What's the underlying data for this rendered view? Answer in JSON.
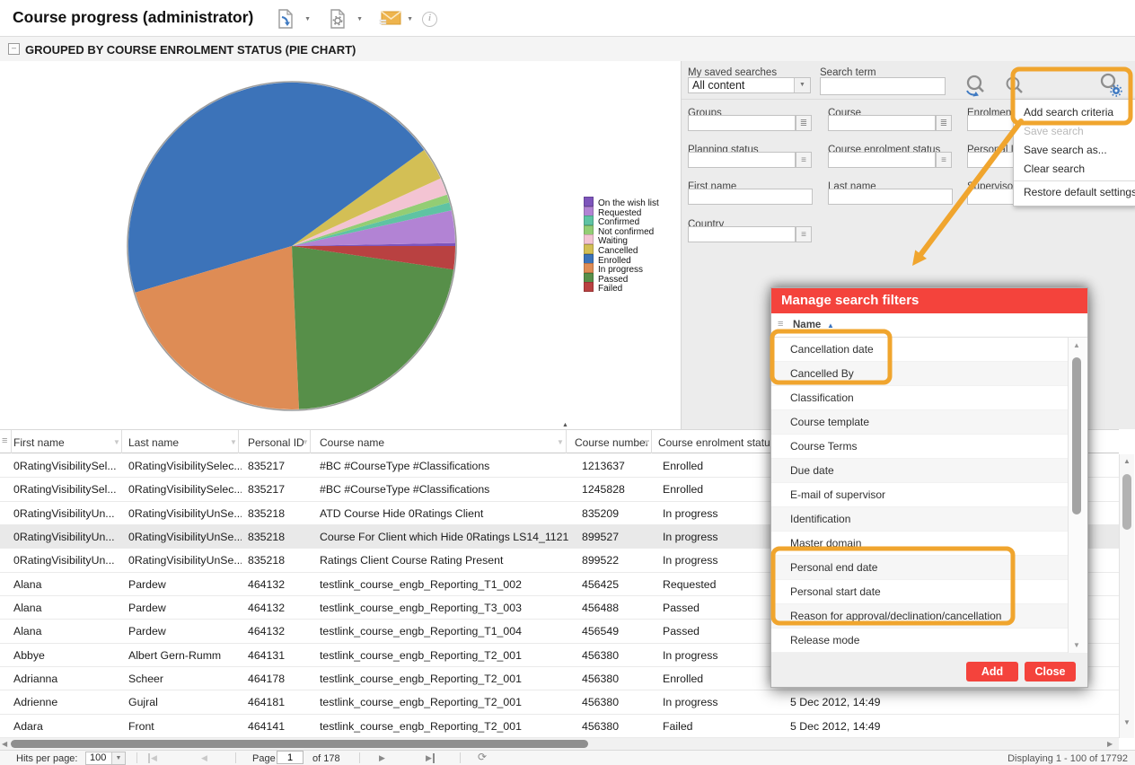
{
  "window": {
    "title": "Course progress (administrator)"
  },
  "section": {
    "title": "GROUPED BY COURSE ENROLMENT STATUS (PIE CHART)"
  },
  "chart_data": {
    "type": "pie",
    "title": "Grouped by course enrolment status (pie chart)",
    "legend_position": "right",
    "start_angle_deg": 0,
    "direction": "counterclockwise",
    "slices": [
      {
        "label": "On the wish list",
        "percent": 0.3,
        "color": "#7d54bb"
      },
      {
        "label": "Requested",
        "percent": 3.2,
        "color": "#b283d4"
      },
      {
        "label": "Confirmed",
        "percent": 0.8,
        "color": "#5fc3a3"
      },
      {
        "label": "Not confirmed",
        "percent": 0.8,
        "color": "#93cd74"
      },
      {
        "label": "Waiting",
        "percent": 1.7,
        "color": "#f3c4d3"
      },
      {
        "label": "Cancelled",
        "percent": 3.2,
        "color": "#d3bf55"
      },
      {
        "label": "Enrolled",
        "percent": 44.6,
        "color": "#3c73b9"
      },
      {
        "label": "In progress",
        "percent": 21.1,
        "color": "#de8c55"
      },
      {
        "label": "Passed",
        "percent": 22.0,
        "color": "#578f49"
      },
      {
        "label": "Failed",
        "percent": 2.3,
        "color": "#b94141"
      }
    ]
  },
  "search_panel": {
    "saved_label": "My saved searches",
    "saved_value": "All content",
    "term_label": "Search term",
    "term_value": "",
    "fields": [
      {
        "label": "Groups",
        "value": "",
        "button": "list"
      },
      {
        "label": "Course",
        "value": "",
        "button": "list"
      },
      {
        "label": "Enrolment date",
        "value": "",
        "button": "list"
      },
      {
        "label": "Planning status",
        "value": "",
        "button": "menu"
      },
      {
        "label": "Course enrolment status",
        "value": "",
        "button": "menu"
      },
      {
        "label": "Personal ID",
        "value": "",
        "button": null
      },
      {
        "label": "First name",
        "value": "",
        "button": null
      },
      {
        "label": "Last name",
        "value": "",
        "button": null
      },
      {
        "label": "Supervisor",
        "value": "",
        "button": "menu"
      },
      {
        "label": "Country",
        "value": "",
        "button": "menu"
      }
    ]
  },
  "menu": {
    "items": [
      {
        "label": "Add search criteria",
        "disabled": false
      },
      {
        "label": "Save search",
        "disabled": true
      },
      {
        "label": "Save search as...",
        "disabled": false
      },
      {
        "label": "Clear search",
        "disabled": false
      },
      {
        "label": "Restore default settings",
        "disabled": false
      }
    ]
  },
  "modal": {
    "title": "Manage search filters",
    "name_column": "Name",
    "items": [
      "Cancellation date",
      "Cancelled By",
      "Classification",
      "Course template",
      "Course Terms",
      "Due date",
      "E-mail of supervisor",
      "Identification",
      "Master domain",
      "Personal end date",
      "Personal start date",
      "Reason for approval/declination/cancellation",
      "Release mode"
    ],
    "add_label": "Add",
    "close_label": "Close"
  },
  "table": {
    "columns": [
      "First name",
      "Last name",
      "Personal ID",
      "Course name",
      "Course number",
      "Course enrolment status"
    ],
    "rows": [
      {
        "first": "0RatingVisibilitySel...",
        "last": "0RatingVisibilitySelec...",
        "id": "835217",
        "course": "#BC #CourseType #Classifications",
        "number": "1213637",
        "status": "Enrolled",
        "date": "",
        "selected": false
      },
      {
        "first": "0RatingVisibilitySel...",
        "last": "0RatingVisibilitySelec...",
        "id": "835217",
        "course": "#BC #CourseType #Classifications",
        "number": "1245828",
        "status": "Enrolled",
        "date": "",
        "selected": false
      },
      {
        "first": "0RatingVisibilityUn...",
        "last": "0RatingVisibilityUnSe...",
        "id": "835218",
        "course": "ATD Course Hide 0Ratings Client",
        "number": "835209",
        "status": "In progress",
        "date": "",
        "selected": false
      },
      {
        "first": "0RatingVisibilityUn...",
        "last": "0RatingVisibilityUnSe...",
        "id": "835218",
        "course": "Course For Client which Hide 0Ratings LS14_1121",
        "number": "899527",
        "status": "In progress",
        "date": "",
        "selected": true
      },
      {
        "first": "0RatingVisibilityUn...",
        "last": "0RatingVisibilityUnSe...",
        "id": "835218",
        "course": "Ratings Client Course Rating Present",
        "number": "899522",
        "status": "In progress",
        "date": "",
        "selected": false
      },
      {
        "first": "Alana",
        "last": "Pardew",
        "id": "464132",
        "course": "testlink_course_engb_Reporting_T1_002",
        "number": "456425",
        "status": "Requested",
        "date": "",
        "selected": false
      },
      {
        "first": "Alana",
        "last": "Pardew",
        "id": "464132",
        "course": "testlink_course_engb_Reporting_T3_003",
        "number": "456488",
        "status": "Passed",
        "date": "",
        "selected": false
      },
      {
        "first": "Alana",
        "last": "Pardew",
        "id": "464132",
        "course": "testlink_course_engb_Reporting_T1_004",
        "number": "456549",
        "status": "Passed",
        "date": "",
        "selected": false
      },
      {
        "first": "Abbye",
        "last": "Albert Gern-Rumm",
        "id": "464131",
        "course": "testlink_course_engb_Reporting_T2_001",
        "number": "456380",
        "status": "In progress",
        "date": "",
        "selected": false
      },
      {
        "first": "Adrianna",
        "last": "Scheer",
        "id": "464178",
        "course": "testlink_course_engb_Reporting_T2_001",
        "number": "456380",
        "status": "Enrolled",
        "date": "",
        "selected": false
      },
      {
        "first": "Adrienne",
        "last": "Gujral",
        "id": "464181",
        "course": "testlink_course_engb_Reporting_T2_001",
        "number": "456380",
        "status": "In progress",
        "date": "5 Dec 2012, 14:49",
        "selected": false
      },
      {
        "first": "Adara",
        "last": "Front",
        "id": "464141",
        "course": "testlink_course_engb_Reporting_T2_001",
        "number": "456380",
        "status": "Failed",
        "date": "5 Dec 2012, 14:49",
        "selected": false
      }
    ]
  },
  "footer": {
    "hits_label": "Hits per page:",
    "hits_value": "100",
    "page_label": "Page",
    "page_value": "1",
    "of_label": "of 178",
    "displaying": "Displaying 1 - 100 of 17792"
  },
  "annotation_color": "#f0a52e"
}
